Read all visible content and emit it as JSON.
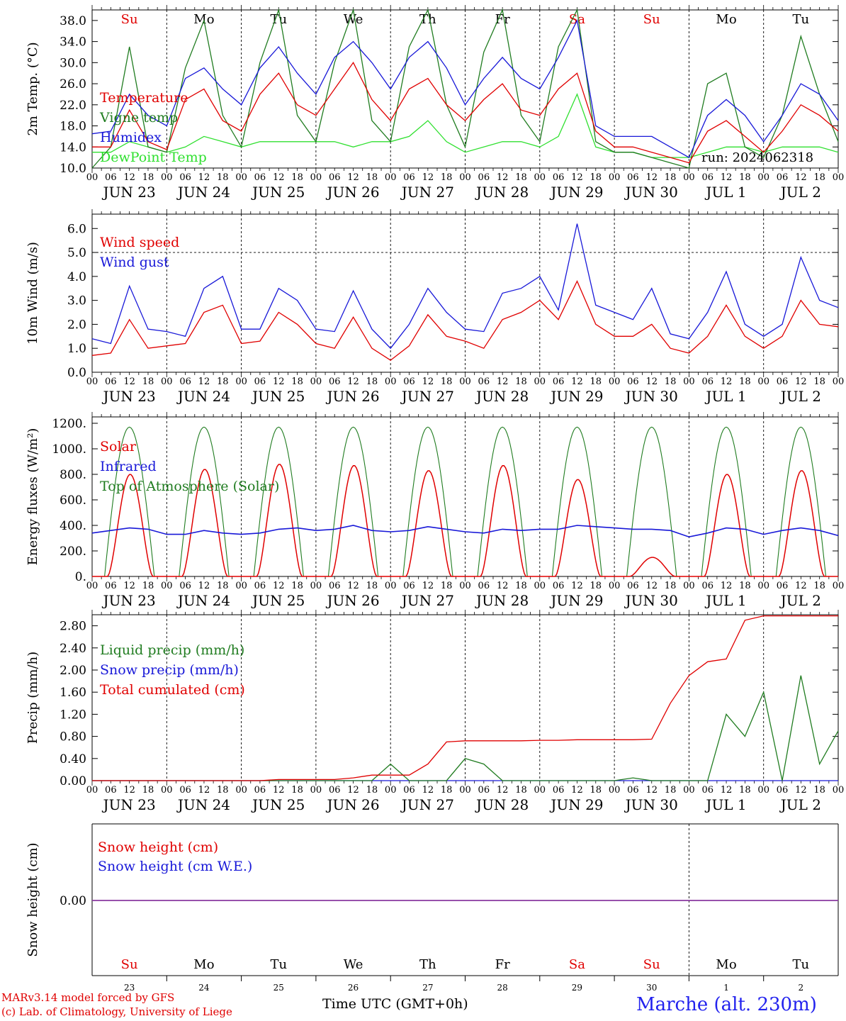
{
  "footer": {
    "model": "MARv3.14 model forced by GFS",
    "credit": "(c) Lab. of Climatology, University of Liege",
    "time_axis": "Time UTC (GMT+0h)",
    "station": "Marche (alt. 230m)"
  },
  "colors": {
    "red": "#e00000",
    "green": "#207c20",
    "blue": "#1818d8",
    "lightgreen": "#30e030",
    "purple": "#8a3aa0"
  },
  "day_letters": [
    "Su",
    "Mo",
    "Tu",
    "We",
    "Th",
    "Fr",
    "Sa",
    "Su",
    "Mo",
    "Tu"
  ],
  "weekend_flags": [
    true,
    false,
    false,
    false,
    false,
    false,
    true,
    true,
    false,
    false
  ],
  "date_labels": [
    "JUN 23",
    "JUN 24",
    "JUN 25",
    "JUN 26",
    "JUN 27",
    "JUN 28",
    "JUN 29",
    "JUN 30",
    "JUL  1",
    "JUL  2"
  ],
  "day_numbers": [
    "23",
    "24",
    "25",
    "26",
    "27",
    "28",
    "29",
    "30",
    "1",
    "2"
  ],
  "hour_labels": [
    "00",
    "06",
    "12",
    "18"
  ],
  "chart_data": [
    {
      "type": "line",
      "ylabel": "2m Temp. (°C)",
      "ylim": [
        10,
        40
      ],
      "yticks": [
        "10.0",
        "14.0",
        "18.0",
        "22.0",
        "26.0",
        "30.0",
        "34.0",
        "38.0"
      ],
      "annotation": "run: 2024062318",
      "x_hours": [
        0,
        6,
        12,
        18,
        24,
        30,
        36,
        42,
        48,
        54,
        60,
        66,
        72,
        78,
        84,
        90,
        96,
        102,
        108,
        114,
        120,
        126,
        132,
        138,
        144,
        150,
        156,
        162,
        168,
        174,
        180,
        186,
        192,
        198,
        204,
        210,
        216,
        222,
        228,
        234,
        240
      ],
      "series": [
        {
          "name": "Temperature",
          "color": "#e00000",
          "values": [
            14,
            14,
            21,
            15,
            13.5,
            23,
            25,
            19,
            17,
            24,
            28,
            22,
            20,
            25,
            30,
            23,
            19,
            25,
            27,
            22,
            19,
            23,
            26,
            21,
            20,
            25,
            28,
            17,
            14,
            14,
            13,
            12,
            11,
            17,
            19,
            16,
            13,
            17,
            22,
            20,
            17
          ]
        },
        {
          "name": "Vigne temp",
          "color": "#207c20",
          "values": [
            10,
            14,
            33,
            14,
            13,
            29,
            38,
            20,
            14,
            30,
            40,
            20,
            15,
            30,
            40,
            19,
            15,
            33,
            40,
            22,
            14,
            32,
            40,
            20,
            15,
            33,
            40,
            15,
            13,
            13,
            12,
            11,
            10,
            26,
            28,
            14,
            12,
            20,
            35,
            24,
            15
          ]
        },
        {
          "name": "Humidex",
          "color": "#1818d8",
          "values": [
            16.5,
            17,
            24,
            20,
            18,
            27,
            29,
            25,
            22,
            29,
            33,
            28,
            24,
            31,
            34,
            30,
            25,
            31,
            34,
            29,
            22,
            27,
            31,
            27,
            25,
            31,
            38,
            18,
            16,
            16,
            16,
            14,
            12,
            20,
            23,
            20,
            15,
            20,
            26,
            24,
            19
          ]
        },
        {
          "name": "DewPoint Temp",
          "color": "#30e030",
          "values": [
            13,
            13,
            15,
            14,
            13,
            14,
            16,
            15,
            14,
            15,
            15,
            15,
            15,
            15,
            14,
            15,
            15,
            16,
            19,
            15,
            13,
            14,
            15,
            15,
            14,
            16,
            24,
            14,
            13,
            13,
            12,
            12,
            12,
            13,
            14,
            14,
            13,
            14,
            14,
            14,
            13
          ]
        }
      ]
    },
    {
      "type": "line",
      "ylabel": "10m Wind (m/s)",
      "ylim": [
        0,
        6.6
      ],
      "yticks": [
        "0.0",
        "1.0",
        "2.0",
        "3.0",
        "4.0",
        "5.0",
        "6.0"
      ],
      "ref_line": 5.0,
      "x_hours": [
        0,
        6,
        12,
        18,
        24,
        30,
        36,
        42,
        48,
        54,
        60,
        66,
        72,
        78,
        84,
        90,
        96,
        102,
        108,
        114,
        120,
        126,
        132,
        138,
        144,
        150,
        156,
        162,
        168,
        174,
        180,
        186,
        192,
        198,
        204,
        210,
        216,
        222,
        228,
        234,
        240
      ],
      "series": [
        {
          "name": "Wind speed",
          "color": "#e00000",
          "values": [
            0.7,
            0.8,
            2.2,
            1.0,
            1.1,
            1.2,
            2.5,
            2.8,
            1.2,
            1.3,
            2.5,
            2.0,
            1.2,
            1.0,
            2.3,
            1.0,
            0.5,
            1.1,
            2.4,
            1.5,
            1.3,
            1.0,
            2.2,
            2.5,
            3.0,
            2.2,
            3.8,
            2.0,
            1.5,
            1.5,
            2.0,
            1.0,
            0.8,
            1.5,
            2.8,
            1.5,
            1.0,
            1.5,
            3.0,
            2.0,
            1.9
          ]
        },
        {
          "name": "Wind gust",
          "color": "#1818d8",
          "values": [
            1.4,
            1.2,
            3.6,
            1.8,
            1.7,
            1.5,
            3.5,
            4.0,
            1.8,
            1.8,
            3.5,
            3.0,
            1.8,
            1.7,
            3.4,
            1.8,
            1.0,
            2.0,
            3.5,
            2.5,
            1.8,
            1.7,
            3.3,
            3.5,
            4.0,
            2.6,
            6.2,
            2.8,
            2.5,
            2.2,
            3.5,
            1.6,
            1.4,
            2.5,
            4.2,
            2.0,
            1.5,
            2.0,
            4.8,
            3.0,
            2.7
          ]
        }
      ]
    },
    {
      "type": "line",
      "ylabel": "Energy fluxes (W/m²)",
      "ylim": [
        0,
        1250
      ],
      "yticks": [
        "0.",
        "200.",
        "400.",
        "600.",
        "800.",
        "1000.",
        "1200."
      ],
      "toa_peak": 1170,
      "solar_peaks": [
        800,
        840,
        880,
        870,
        830,
        870,
        760,
        150,
        800,
        830
      ],
      "x_hours": [
        0,
        6,
        12,
        18,
        24,
        30,
        36,
        42,
        48,
        54,
        60,
        66,
        72,
        78,
        84,
        90,
        96,
        102,
        108,
        114,
        120,
        126,
        132,
        138,
        144,
        150,
        156,
        162,
        168,
        174,
        180,
        186,
        192,
        198,
        204,
        210,
        216,
        222,
        228,
        234,
        240
      ],
      "series": [
        {
          "name": "Solar",
          "color": "#e00000",
          "values": []
        },
        {
          "name": "Infrared",
          "color": "#1818d8",
          "values": [
            340,
            360,
            380,
            370,
            330,
            330,
            360,
            340,
            330,
            340,
            370,
            380,
            360,
            370,
            400,
            360,
            350,
            360,
            390,
            370,
            350,
            340,
            370,
            360,
            370,
            370,
            400,
            390,
            380,
            370,
            370,
            360,
            310,
            340,
            380,
            370,
            330,
            360,
            380,
            360,
            320
          ]
        },
        {
          "name": "Top of Atmosphere (Solar)",
          "color": "#207c20",
          "values": []
        }
      ]
    },
    {
      "type": "line",
      "ylabel": "Precip (mm/h)",
      "ylim": [
        0,
        3.0
      ],
      "yticks": [
        "0.00",
        "0.40",
        "0.80",
        "1.20",
        "1.60",
        "2.00",
        "2.40",
        "2.80"
      ],
      "x_hours": [
        0,
        6,
        12,
        18,
        24,
        30,
        36,
        42,
        48,
        54,
        60,
        66,
        72,
        78,
        84,
        90,
        96,
        102,
        108,
        114,
        120,
        126,
        132,
        138,
        144,
        150,
        156,
        162,
        168,
        174,
        180,
        186,
        192,
        198,
        204,
        210,
        216,
        222,
        228,
        234,
        240
      ],
      "series": [
        {
          "name": "Liquid precip (mm/h)",
          "color": "#207c20",
          "values": [
            0,
            0,
            0,
            0,
            0,
            0,
            0,
            0,
            0,
            0,
            0,
            0,
            0,
            0,
            0,
            0,
            0.3,
            0,
            0,
            0,
            0.4,
            0.3,
            0,
            0,
            0,
            0,
            0,
            0,
            0,
            0.05,
            0,
            0,
            0,
            0,
            1.2,
            0.8,
            1.6,
            0,
            1.9,
            0.3,
            0.9
          ]
        },
        {
          "name": "Snow precip (mm/h)",
          "color": "#1818d8",
          "values": [
            0,
            0,
            0,
            0,
            0,
            0,
            0,
            0,
            0,
            0,
            0,
            0,
            0,
            0,
            0,
            0,
            0,
            0,
            0,
            0,
            0,
            0,
            0,
            0,
            0,
            0,
            0,
            0,
            0,
            0,
            0,
            0,
            0,
            0,
            0,
            0,
            0,
            0,
            0,
            0,
            0
          ]
        },
        {
          "name": "Total cumulated (cm)",
          "color": "#e00000",
          "values": [
            0,
            0,
            0,
            0,
            0,
            0,
            0,
            0,
            0,
            0,
            0.02,
            0.02,
            0.02,
            0.02,
            0.05,
            0.1,
            0.1,
            0.1,
            0.3,
            0.7,
            0.72,
            0.72,
            0.72,
            0.72,
            0.73,
            0.73,
            0.74,
            0.74,
            0.74,
            0.74,
            0.75,
            1.4,
            1.9,
            2.15,
            2.2,
            2.9,
            2.98,
            2.98,
            2.98,
            2.98,
            2.98
          ]
        }
      ]
    },
    {
      "type": "line",
      "ylabel": "Snow height (cm)",
      "yticks": [
        "0.00"
      ],
      "series": [
        {
          "name": "Snow height (cm)",
          "color": "#e00000",
          "values": [
            0,
            0
          ]
        },
        {
          "name": "Snow height (cm W.E.)",
          "color": "#1818d8",
          "values": [
            0,
            0
          ]
        }
      ]
    }
  ]
}
